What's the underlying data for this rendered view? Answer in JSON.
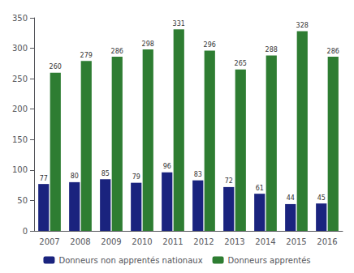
{
  "chart_data": {
    "type": "bar",
    "categories": [
      "2007",
      "2008",
      "2009",
      "2010",
      "2011",
      "2012",
      "2013",
      "2014",
      "2015",
      "2016"
    ],
    "series": [
      {
        "name": "Donneurs non apprentés nationaux",
        "color": "#1a237e",
        "values": [
          77,
          80,
          85,
          79,
          96,
          83,
          72,
          61,
          44,
          45
        ]
      },
      {
        "name": "Donneurs apprentés",
        "color": "#2e7d32",
        "values": [
          260,
          279,
          286,
          298,
          331,
          296,
          265,
          288,
          328,
          286
        ]
      }
    ],
    "ylim": [
      0,
      350
    ],
    "yticks": [
      0,
      50,
      100,
      150,
      200,
      250,
      300,
      350
    ],
    "grid": false,
    "legend": "bottom",
    "data_labels": true
  }
}
